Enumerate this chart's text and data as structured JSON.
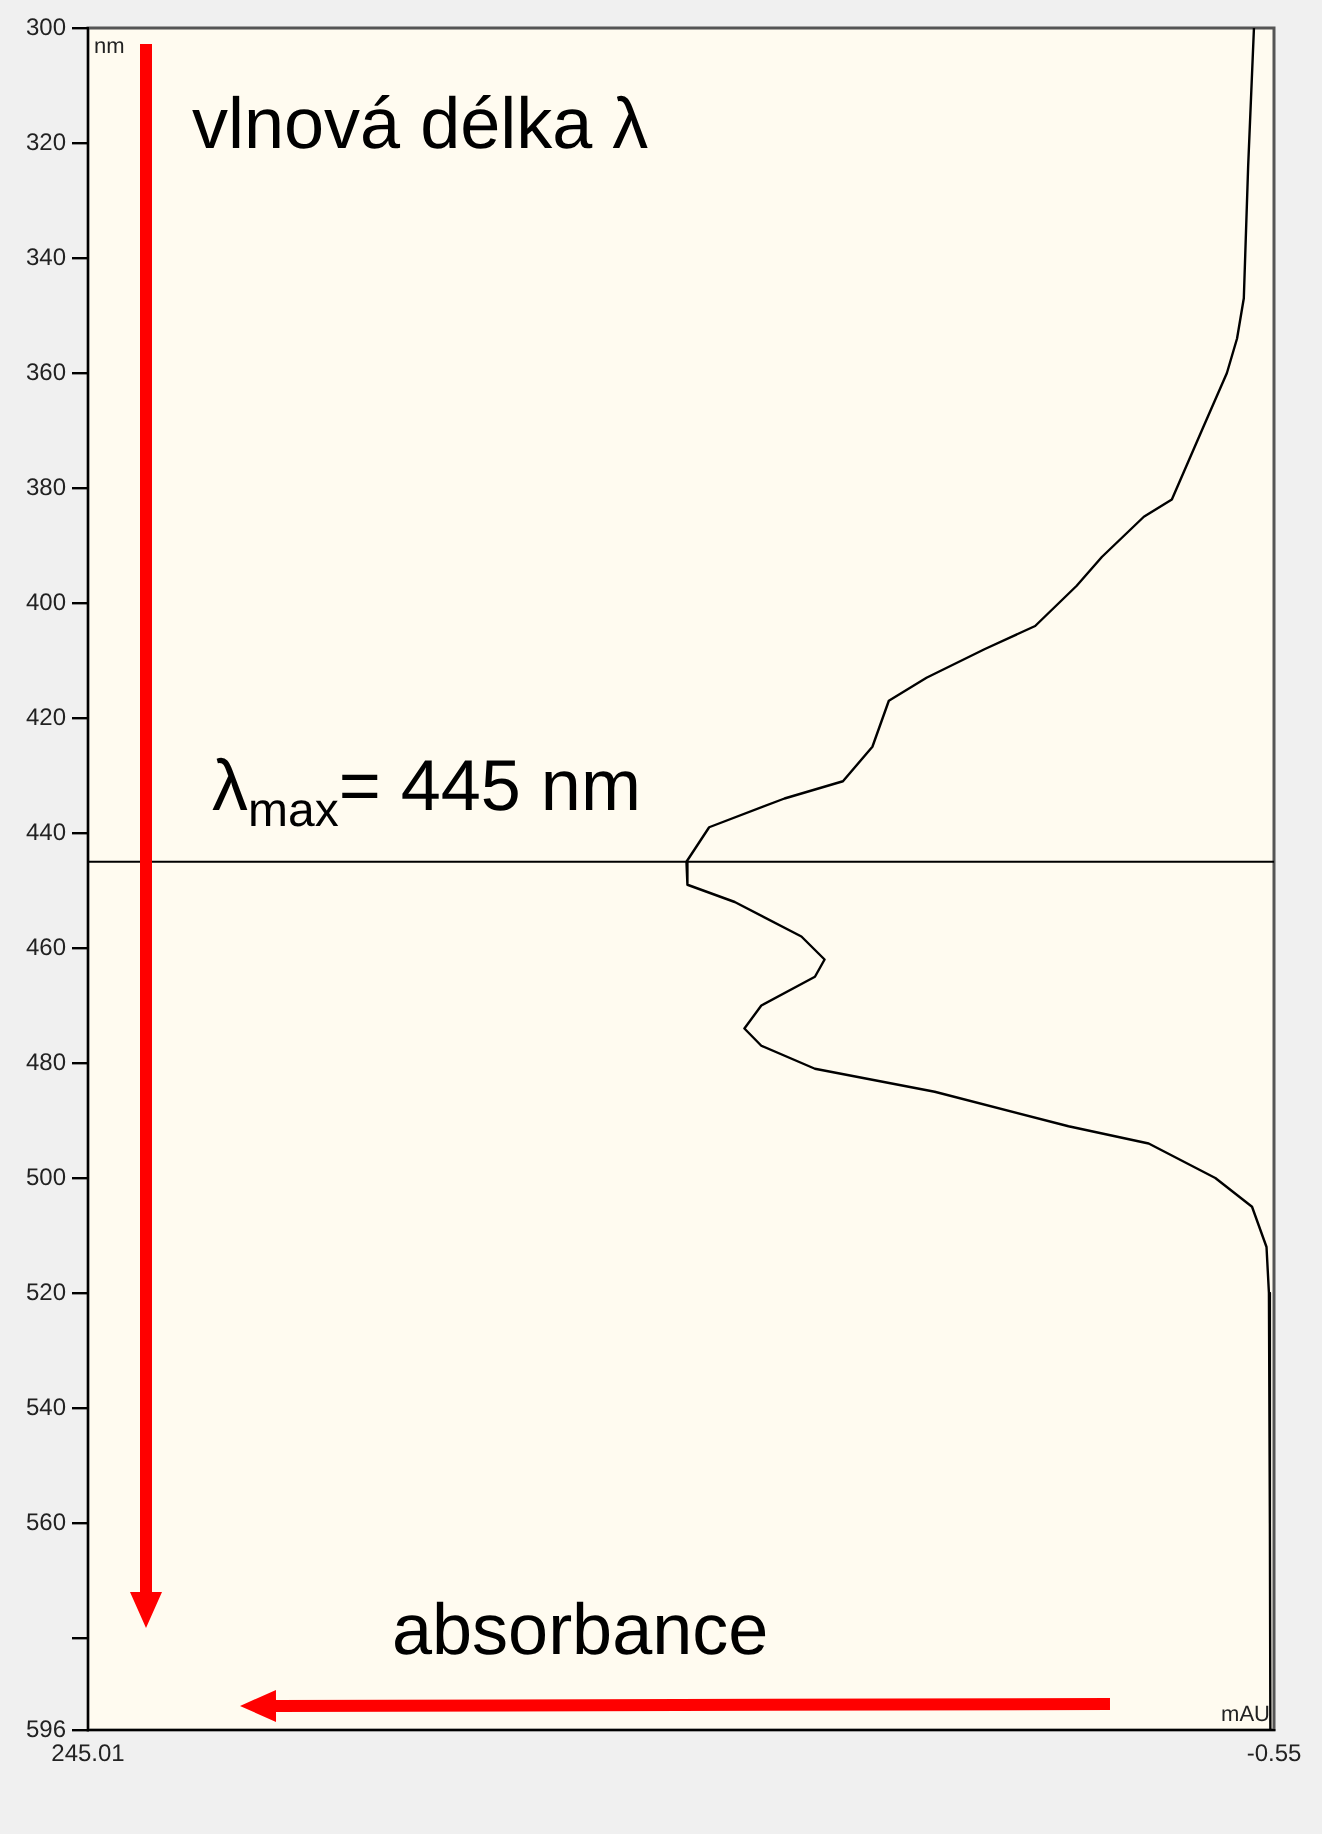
{
  "chart_data": {
    "type": "line",
    "orientation": "horizontal",
    "xlabel": "mAU",
    "ylabel": "nm",
    "annotations": [
      "vlnová délka λ",
      "absorbance"
    ],
    "ref_lines": [
      {
        "axis": "y",
        "value": 445,
        "label": "λ$_{max}$= 445 nm",
        "color": "#000000"
      }
    ],
    "xlim": [
      245.01,
      -0.55
    ],
    "xticks": [
      245.01,
      -0.55
    ],
    "ylim": [
      596,
      300
    ],
    "yticks": [
      300,
      320,
      340,
      360,
      380,
      400,
      420,
      440,
      460,
      480,
      500,
      520,
      540,
      560,
      {
        "value": 580,
        "label": null
      },
      596
    ],
    "marker": "none",
    "grid": false,
    "series": [
      {
        "color": "#000000",
        "x": [
          300,
          324,
          347,
          354,
          360,
          370,
          382,
          385,
          392,
          397,
          404,
          408,
          413,
          417,
          425,
          431,
          434,
          439,
          445,
          449,
          452,
          458,
          462,
          465,
          470,
          474,
          477,
          481,
          485,
          491,
          494,
          500,
          505,
          512,
          520,
          560,
          596
        ],
        "values": [
          3.6,
          4.8,
          5.7,
          7.1,
          9.2,
          14.4,
          20.6,
          26.4,
          35.1,
          40.3,
          48.9,
          59.3,
          71.4,
          79.2,
          82.6,
          88.7,
          100.8,
          116.4,
          121.1,
          120.9,
          111.1,
          97.3,
          92.5,
          94.5,
          105.6,
          109.1,
          105.6,
          94.5,
          69.7,
          42,
          25.4,
          11.6,
          4,
          1,
          0.5,
          0.3,
          0.2
        ]
      }
    ]
  }
}
